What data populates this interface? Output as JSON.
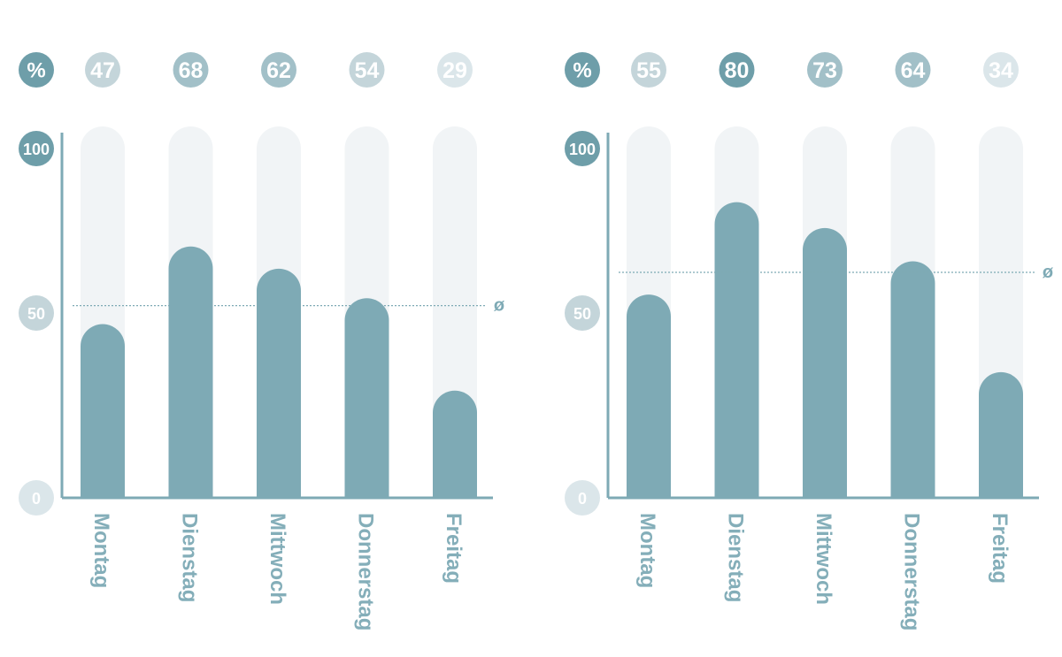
{
  "colors": {
    "bar": "#7eaab5",
    "track": "#f1f4f6",
    "axis": "#7eaab5",
    "badge_dark": "#6e9ea9",
    "badge_light": "#c4d5da",
    "badge_mid": "#a2c0c8",
    "badge_pale": "#dbe6ea",
    "label": "#84aeb9"
  },
  "chart_data": [
    {
      "type": "bar",
      "unit_label": "%",
      "categories": [
        "Montag",
        "Dienstag",
        "Mittwoch",
        "Donnerstag",
        "Freitag"
      ],
      "values": [
        47,
        68,
        62,
        54,
        29
      ],
      "yticks": [
        "100",
        "50",
        "0"
      ],
      "ylim": [
        0,
        100
      ],
      "average_symbol": "ø",
      "average": 52,
      "grid": false
    },
    {
      "type": "bar",
      "unit_label": "%",
      "categories": [
        "Montag",
        "Dienstag",
        "Mittwoch",
        "Donnerstag",
        "Freitag"
      ],
      "values": [
        55,
        80,
        73,
        64,
        34
      ],
      "yticks": [
        "100",
        "50",
        "0"
      ],
      "ylim": [
        0,
        100
      ],
      "average_symbol": "ø",
      "average": 61,
      "grid": false
    }
  ]
}
